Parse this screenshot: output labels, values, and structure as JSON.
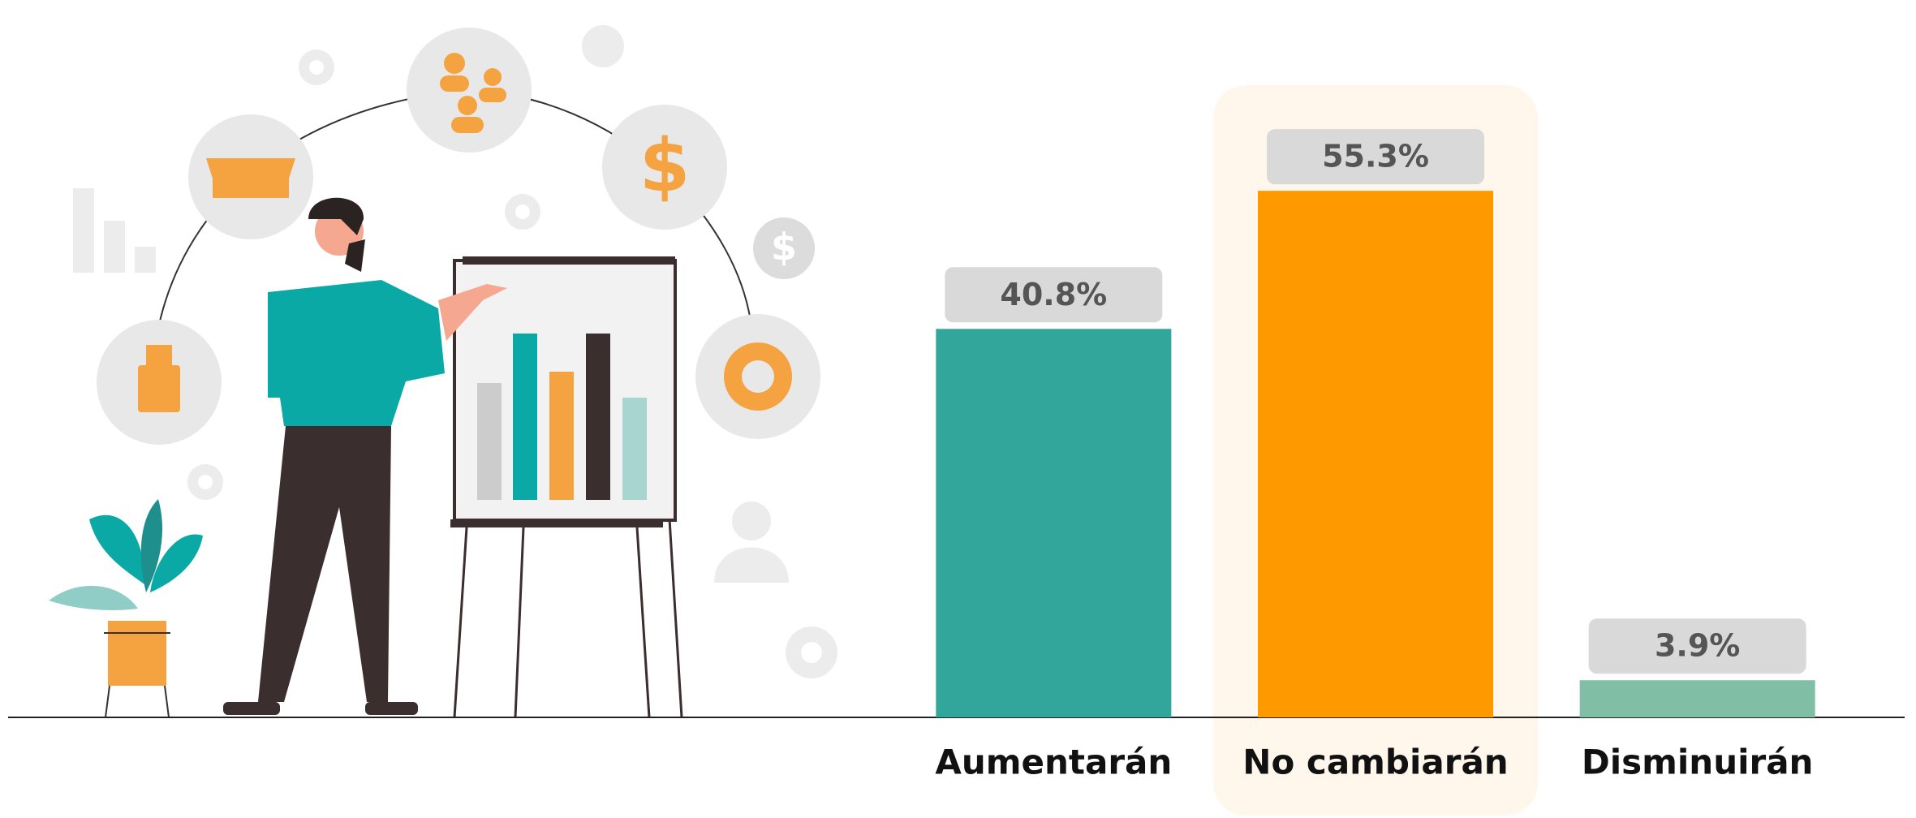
{
  "chart_data": {
    "type": "bar",
    "categories": [
      "Aumentarán",
      "No cambiarán",
      "Disminuirán"
    ],
    "values": [
      40.8,
      55.3,
      3.9
    ],
    "value_labels": [
      "40.8%",
      "55.3%",
      "3.9%"
    ],
    "colors": [
      "#33a69b",
      "#ff9900",
      "#80bfa6"
    ],
    "highlight": 1,
    "ylim": [
      0,
      60
    ]
  }
}
